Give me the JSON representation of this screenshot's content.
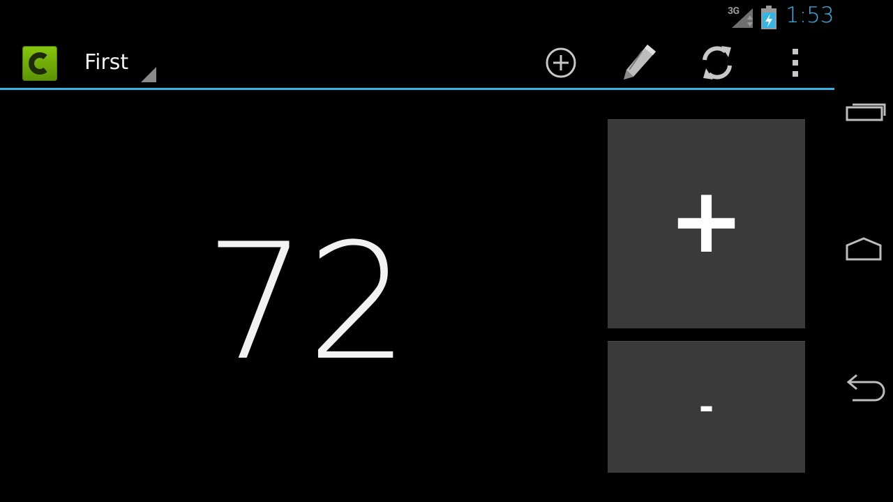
{
  "status_bar": {
    "network_label": "3G",
    "time": "1:53",
    "signal_icon": "signal-icon",
    "battery_icon": "battery-charging-icon",
    "accent_color": "#33b5e5"
  },
  "action_bar": {
    "app_icon": "app-c-icon",
    "spinner_title": "First",
    "actions": [
      {
        "icon": "add-circle-icon"
      },
      {
        "icon": "pencil-icon"
      },
      {
        "icon": "refresh-icon"
      },
      {
        "icon": "overflow-menu-icon"
      }
    ],
    "underline_color": "#33b5e5"
  },
  "counter": {
    "value": "72",
    "increment_label": "+",
    "decrement_label": "-"
  },
  "nav_bar": {
    "keys": [
      {
        "icon": "recent-apps-icon"
      },
      {
        "icon": "home-icon"
      },
      {
        "icon": "back-icon"
      }
    ]
  }
}
